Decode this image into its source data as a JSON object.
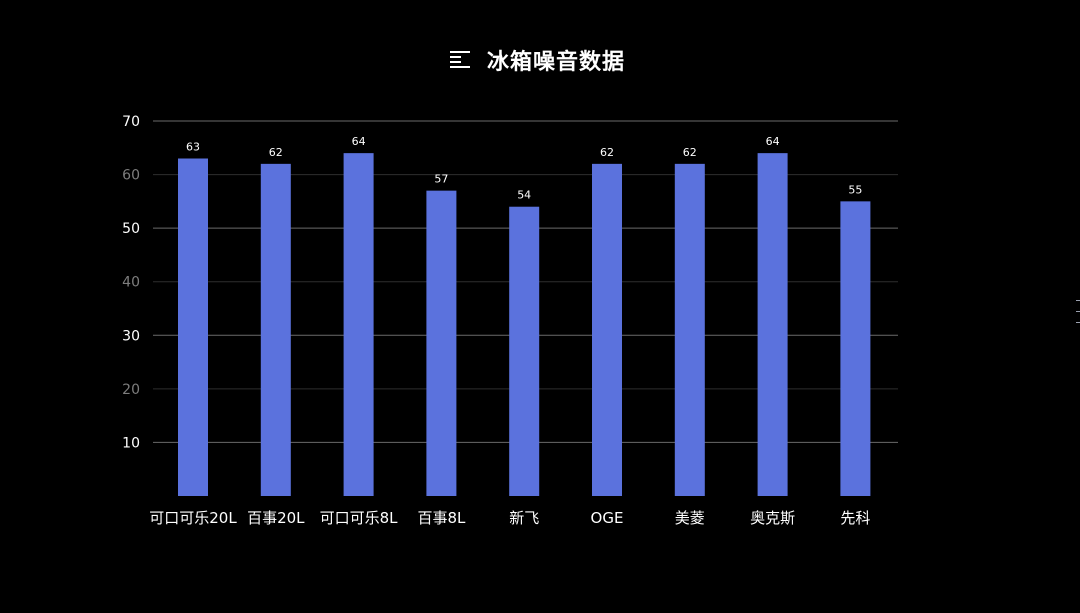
{
  "chart_data": {
    "type": "bar",
    "title": "冰箱噪音数据",
    "categories": [
      "可口可乐20L",
      "百事20L",
      "可口可乐8L",
      "百事8L",
      "新飞",
      "OGE",
      "美菱",
      "奥克斯",
      "先科"
    ],
    "values": [
      63,
      62,
      64,
      57,
      54,
      62,
      62,
      64,
      55
    ],
    "data_labels": [
      "63",
      "62",
      "64",
      "57",
      "54",
      "62",
      "62",
      "64",
      "55"
    ],
    "yticks": [
      10,
      20,
      30,
      40,
      50,
      60,
      70
    ],
    "ylim": [
      0,
      70
    ],
    "xlabel": "",
    "ylabel": "",
    "grid": true,
    "bar_color": "#5b72dd",
    "background": "#000000",
    "title_icon": "text-align-left-icon"
  }
}
